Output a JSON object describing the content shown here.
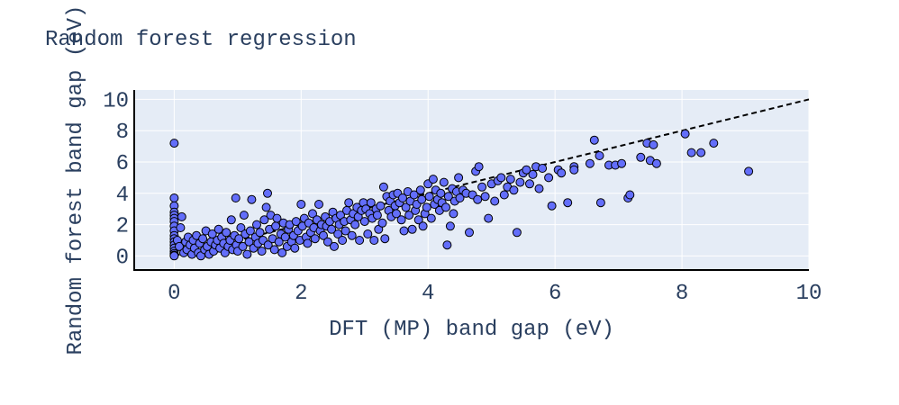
{
  "chart_data": {
    "type": "scatter",
    "title": "Random forest regression",
    "xlabel": "DFT (MP) band gap (eV)",
    "ylabel": "Random forest band gap (eV)",
    "xlim": [
      -0.63,
      10
    ],
    "ylim": [
      -0.9,
      10.6
    ],
    "x_ticks": [
      0,
      2,
      4,
      6,
      8,
      10
    ],
    "y_ticks": [
      0,
      2,
      4,
      6,
      8,
      10
    ],
    "grid": true,
    "legend": "none",
    "reference_line": {
      "style": "dashed",
      "x": [
        0,
        10
      ],
      "y": [
        0,
        10
      ]
    },
    "colors": {
      "marker": "#636efa",
      "marker_edge": "#000000",
      "plot_bg": "#e5ecf6",
      "grid": "#ffffff",
      "line": "#000000"
    },
    "points": [
      [
        0,
        7.2
      ],
      [
        0,
        3.7
      ],
      [
        0,
        3.2
      ],
      [
        0,
        2.8
      ],
      [
        0,
        2.6
      ],
      [
        0,
        2.4
      ],
      [
        0,
        2.2
      ],
      [
        0,
        1.9
      ],
      [
        0,
        1.6
      ],
      [
        0,
        1.3
      ],
      [
        0,
        1.1
      ],
      [
        0,
        0.9
      ],
      [
        0,
        0.7
      ],
      [
        0,
        0.5
      ],
      [
        0,
        0.3
      ],
      [
        0,
        0.15
      ],
      [
        0,
        0.05
      ],
      [
        0,
        0.0
      ],
      [
        0.05,
        1.0
      ],
      [
        0.08,
        0.6
      ],
      [
        0.1,
        1.8
      ],
      [
        0.12,
        2.5
      ],
      [
        0.15,
        0.2
      ],
      [
        0.18,
        0.9
      ],
      [
        0.2,
        0.4
      ],
      [
        0.22,
        1.2
      ],
      [
        0.25,
        0.7
      ],
      [
        0.28,
        0.1
      ],
      [
        0.3,
        1.0
      ],
      [
        0.32,
        0.5
      ],
      [
        0.35,
        1.3
      ],
      [
        0.38,
        0.2
      ],
      [
        0.4,
        0.8
      ],
      [
        0.42,
        0.0
      ],
      [
        0.45,
        1.1
      ],
      [
        0.48,
        0.4
      ],
      [
        0.5,
        1.6
      ],
      [
        0.52,
        0.6
      ],
      [
        0.55,
        0.1
      ],
      [
        0.58,
        0.9
      ],
      [
        0.6,
        1.4
      ],
      [
        0.62,
        0.3
      ],
      [
        0.65,
        0.7
      ],
      [
        0.68,
        1.0
      ],
      [
        0.7,
        1.7
      ],
      [
        0.72,
        0.5
      ],
      [
        0.75,
        1.2
      ],
      [
        0.78,
        0.8
      ],
      [
        0.8,
        0.2
      ],
      [
        0.82,
        1.5
      ],
      [
        0.85,
        0.6
      ],
      [
        0.88,
        1.0
      ],
      [
        0.9,
        2.3
      ],
      [
        0.92,
        0.4
      ],
      [
        0.95,
        1.3
      ],
      [
        0.97,
        3.7
      ],
      [
        0.98,
        0.7
      ],
      [
        1.0,
        0.3
      ],
      [
        1.02,
        1.1
      ],
      [
        1.05,
        1.8
      ],
      [
        1.08,
        0.6
      ],
      [
        1.1,
        2.6
      ],
      [
        1.12,
        1.4
      ],
      [
        1.15,
        0.1
      ],
      [
        1.18,
        0.9
      ],
      [
        1.2,
        1.6
      ],
      [
        1.22,
        3.6
      ],
      [
        1.25,
        0.5
      ],
      [
        1.28,
        1.2
      ],
      [
        1.3,
        2.0
      ],
      [
        1.32,
        0.8
      ],
      [
        1.35,
        1.5
      ],
      [
        1.38,
        0.3
      ],
      [
        1.4,
        1.0
      ],
      [
        1.42,
        2.3
      ],
      [
        1.45,
        3.1
      ],
      [
        1.47,
        4.0
      ],
      [
        1.48,
        0.7
      ],
      [
        1.5,
        1.7
      ],
      [
        1.52,
        2.6
      ],
      [
        1.55,
        1.1
      ],
      [
        1.58,
        0.4
      ],
      [
        1.6,
        1.9
      ],
      [
        1.62,
        2.4
      ],
      [
        1.65,
        0.9
      ],
      [
        1.68,
        1.4
      ],
      [
        1.7,
        0.2
      ],
      [
        1.72,
        2.1
      ],
      [
        1.75,
        1.2
      ],
      [
        1.78,
        0.6
      ],
      [
        1.8,
        1.7
      ],
      [
        1.82,
        2.0
      ],
      [
        1.85,
        0.9
      ],
      [
        1.88,
        1.3
      ],
      [
        1.9,
        0.5
      ],
      [
        1.92,
        2.2
      ],
      [
        1.95,
        1.6
      ],
      [
        1.98,
        1.0
      ],
      [
        2.0,
        3.3
      ],
      [
        2.02,
        1.9
      ],
      [
        2.05,
        2.4
      ],
      [
        2.08,
        1.2
      ],
      [
        2.1,
        0.8
      ],
      [
        2.12,
        2.1
      ],
      [
        2.15,
        1.5
      ],
      [
        2.18,
        2.7
      ],
      [
        2.2,
        1.8
      ],
      [
        2.22,
        1.1
      ],
      [
        2.25,
        2.3
      ],
      [
        2.28,
        3.3
      ],
      [
        2.3,
        1.6
      ],
      [
        2.32,
        2.0
      ],
      [
        2.35,
        1.3
      ],
      [
        2.38,
        2.5
      ],
      [
        2.4,
        1.9
      ],
      [
        2.42,
        0.9
      ],
      [
        2.45,
        2.2
      ],
      [
        2.48,
        1.7
      ],
      [
        2.5,
        2.8
      ],
      [
        2.52,
        0.6
      ],
      [
        2.55,
        2.4
      ],
      [
        2.58,
        1.4
      ],
      [
        2.6,
        2.0
      ],
      [
        2.62,
        2.6
      ],
      [
        2.65,
        1.0
      ],
      [
        2.68,
        2.2
      ],
      [
        2.7,
        1.6
      ],
      [
        2.72,
        2.9
      ],
      [
        2.75,
        3.4
      ],
      [
        2.78,
        2.3
      ],
      [
        2.8,
        1.3
      ],
      [
        2.82,
        2.7
      ],
      [
        2.85,
        2.0
      ],
      [
        2.88,
        3.1
      ],
      [
        2.9,
        2.5
      ],
      [
        2.92,
        1.0
      ],
      [
        2.95,
        2.9
      ],
      [
        2.98,
        3.4
      ],
      [
        3.0,
        2.2
      ],
      [
        3.02,
        3.0
      ],
      [
        3.05,
        1.4
      ],
      [
        3.08,
        2.7
      ],
      [
        3.1,
        3.4
      ],
      [
        3.12,
        2.4
      ],
      [
        3.15,
        1.0
      ],
      [
        3.18,
        3.0
      ],
      [
        3.2,
        2.6
      ],
      [
        3.22,
        1.7
      ],
      [
        3.25,
        3.2
      ],
      [
        3.28,
        2.1
      ],
      [
        3.3,
        4.4
      ],
      [
        3.32,
        1.1
      ],
      [
        3.35,
        3.8
      ],
      [
        3.38,
        2.9
      ],
      [
        3.4,
        3.5
      ],
      [
        3.42,
        2.5
      ],
      [
        3.45,
        3.9
      ],
      [
        3.48,
        3.2
      ],
      [
        3.5,
        2.7
      ],
      [
        3.52,
        4.0
      ],
      [
        3.55,
        3.4
      ],
      [
        3.58,
        2.3
      ],
      [
        3.6,
        3.7
      ],
      [
        3.62,
        1.6
      ],
      [
        3.65,
        3.1
      ],
      [
        3.68,
        4.1
      ],
      [
        3.7,
        2.6
      ],
      [
        3.72,
        3.5
      ],
      [
        3.75,
        1.7
      ],
      [
        3.78,
        3.9
      ],
      [
        3.8,
        2.9
      ],
      [
        3.82,
        3.3
      ],
      [
        3.85,
        2.3
      ],
      [
        3.88,
        4.2
      ],
      [
        3.9,
        3.6
      ],
      [
        3.92,
        1.9
      ],
      [
        3.95,
        2.7
      ],
      [
        3.98,
        3.1
      ],
      [
        4.0,
        4.6
      ],
      [
        4.02,
        3.8
      ],
      [
        4.05,
        2.4
      ],
      [
        4.08,
        4.9
      ],
      [
        4.1,
        3.3
      ],
      [
        4.12,
        4.2
      ],
      [
        4.15,
        3.6
      ],
      [
        4.18,
        2.9
      ],
      [
        4.2,
        4.0
      ],
      [
        4.22,
        3.4
      ],
      [
        4.25,
        4.7
      ],
      [
        4.28,
        3.1
      ],
      [
        4.3,
        0.7
      ],
      [
        4.32,
        3.8
      ],
      [
        4.35,
        1.9
      ],
      [
        4.38,
        4.3
      ],
      [
        4.4,
        2.7
      ],
      [
        4.42,
        3.5
      ],
      [
        4.45,
        4.1
      ],
      [
        4.48,
        5.0
      ],
      [
        4.5,
        3.7
      ],
      [
        4.55,
        4.2
      ],
      [
        4.6,
        4.0
      ],
      [
        4.65,
        1.5
      ],
      [
        4.7,
        3.9
      ],
      [
        4.75,
        5.4
      ],
      [
        4.78,
        3.6
      ],
      [
        4.8,
        5.7
      ],
      [
        4.85,
        4.4
      ],
      [
        4.9,
        3.8
      ],
      [
        4.95,
        2.4
      ],
      [
        5.0,
        4.6
      ],
      [
        5.05,
        3.5
      ],
      [
        5.1,
        4.8
      ],
      [
        5.15,
        5.0
      ],
      [
        5.2,
        3.9
      ],
      [
        5.25,
        4.4
      ],
      [
        5.3,
        4.9
      ],
      [
        5.35,
        4.2
      ],
      [
        5.4,
        1.5
      ],
      [
        5.45,
        4.7
      ],
      [
        5.5,
        5.3
      ],
      [
        5.55,
        5.5
      ],
      [
        5.6,
        4.6
      ],
      [
        5.65,
        5.2
      ],
      [
        5.7,
        5.7
      ],
      [
        5.75,
        4.3
      ],
      [
        5.8,
        5.6
      ],
      [
        5.9,
        5.0
      ],
      [
        5.95,
        3.2
      ],
      [
        6.05,
        5.5
      ],
      [
        6.1,
        5.3
      ],
      [
        6.2,
        3.4
      ],
      [
        6.3,
        5.7
      ],
      [
        6.3,
        5.5
      ],
      [
        6.55,
        5.9
      ],
      [
        6.62,
        7.4
      ],
      [
        6.7,
        6.4
      ],
      [
        6.72,
        3.4
      ],
      [
        6.85,
        5.8
      ],
      [
        6.95,
        5.8
      ],
      [
        7.05,
        5.9
      ],
      [
        7.15,
        3.7
      ],
      [
        7.18,
        3.9
      ],
      [
        7.35,
        6.3
      ],
      [
        7.45,
        7.2
      ],
      [
        7.5,
        6.1
      ],
      [
        7.55,
        7.1
      ],
      [
        7.6,
        5.9
      ],
      [
        8.05,
        7.8
      ],
      [
        8.15,
        6.6
      ],
      [
        8.3,
        6.6
      ],
      [
        8.5,
        7.2
      ],
      [
        9.05,
        5.4
      ]
    ]
  }
}
